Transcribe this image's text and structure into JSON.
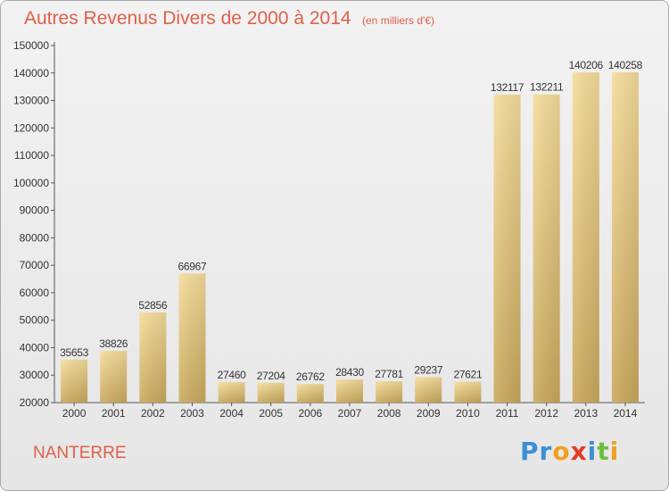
{
  "chart_data": {
    "type": "bar",
    "title": "Autres Revenus Divers de 2000 à 2014",
    "unit_note": "(en milliers d'€)",
    "categories": [
      "2000",
      "2001",
      "2002",
      "2003",
      "2004",
      "2005",
      "2006",
      "2007",
      "2008",
      "2009",
      "2010",
      "2011",
      "2012",
      "2013",
      "2014"
    ],
    "values": [
      35653,
      38826,
      52856,
      66967,
      27460,
      27204,
      26762,
      28430,
      27781,
      29237,
      27621,
      132117,
      132211,
      140206,
      140258
    ],
    "ylim": [
      20000,
      150000
    ],
    "yticks": [
      20000,
      30000,
      40000,
      50000,
      60000,
      70000,
      80000,
      90000,
      100000,
      110000,
      120000,
      130000,
      140000,
      150000
    ],
    "grid": false,
    "bar_color_light": "#f5dc9a",
    "bar_color_dark": "#c9a85c"
  },
  "location": "NANTERRE",
  "brand": {
    "letters": [
      "P",
      "r",
      "o",
      "x",
      "i",
      "t",
      "i"
    ],
    "colors": [
      "#3a8fd6",
      "#3a8fd6",
      "#f0a020",
      "#e23a2a",
      "#3a8fd6",
      "#6cbf3a",
      "#f0a020"
    ]
  },
  "colors": {
    "accent": "#e0604a"
  }
}
